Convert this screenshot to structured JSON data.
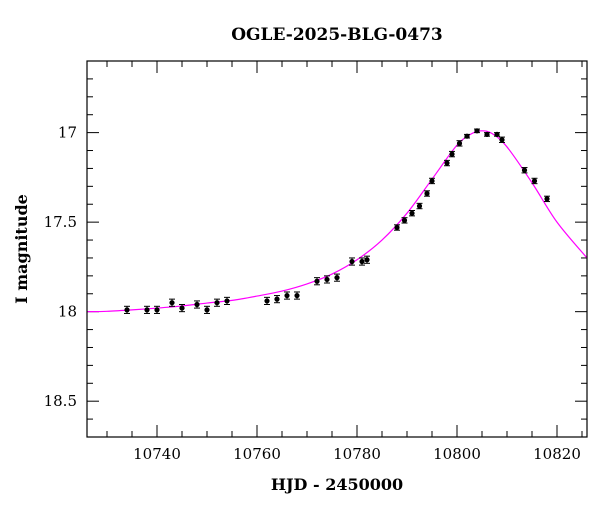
{
  "chart_data": {
    "type": "scatter",
    "title": "OGLE-2025-BLG-0473",
    "xlabel": "HJD - 2450000",
    "ylabel": "I magnitude",
    "xlim": [
      10726,
      10826
    ],
    "ylim": [
      18.7,
      16.6
    ],
    "y_inverted": true,
    "x_ticks": [
      10740,
      10760,
      10780,
      10800,
      10820
    ],
    "x_tick_labels": [
      "10740",
      "10760",
      "10780",
      "10800",
      "10820"
    ],
    "y_ticks": [
      17,
      17.5,
      18,
      18.5
    ],
    "y_tick_labels": [
      "17",
      "17.5",
      "18",
      "18.5"
    ],
    "grid": false,
    "colors": {
      "points": "#000000",
      "model": "#ff00ff",
      "frame": "#000000"
    },
    "series": [
      {
        "kind": "points",
        "x": [
          10734,
          10738,
          10740,
          10743,
          10745,
          10748,
          10750,
          10752,
          10754,
          10762,
          10764,
          10766,
          10768,
          10772,
          10774,
          10776,
          10779,
          10781,
          10782,
          10788,
          10789.5,
          10791,
          10792.5,
          10794,
          10795,
          10798,
          10799,
          10800.5,
          10802,
          10804,
          10806,
          10808,
          10809,
          10813.5,
          10815.5,
          10818
        ],
        "y": [
          17.99,
          17.99,
          17.99,
          17.95,
          17.98,
          17.96,
          17.99,
          17.95,
          17.94,
          17.94,
          17.93,
          17.91,
          17.91,
          17.83,
          17.82,
          17.81,
          17.72,
          17.72,
          17.71,
          17.53,
          17.49,
          17.45,
          17.41,
          17.34,
          17.27,
          17.17,
          17.12,
          17.06,
          17.02,
          16.99,
          17.01,
          17.01,
          17.04,
          17.21,
          17.27,
          17.37
        ],
        "yerr": [
          0.02,
          0.02,
          0.02,
          0.02,
          0.02,
          0.02,
          0.02,
          0.02,
          0.02,
          0.02,
          0.02,
          0.02,
          0.02,
          0.02,
          0.02,
          0.02,
          0.02,
          0.02,
          0.02,
          0.015,
          0.015,
          0.015,
          0.015,
          0.015,
          0.015,
          0.015,
          0.015,
          0.015,
          0.01,
          0.01,
          0.01,
          0.01,
          0.015,
          0.015,
          0.015,
          0.015
        ]
      },
      {
        "kind": "model",
        "x": [
          10726,
          10730,
          10735,
          10740,
          10745,
          10750,
          10755,
          10760,
          10765,
          10770,
          10775,
          10780,
          10785,
          10790,
          10795,
          10800,
          10803,
          10805,
          10807,
          10810,
          10815,
          10820,
          10826
        ],
        "y": [
          18.0,
          17.998,
          17.99,
          17.98,
          17.968,
          17.952,
          17.937,
          17.913,
          17.885,
          17.845,
          17.79,
          17.71,
          17.6,
          17.45,
          17.26,
          17.07,
          17.005,
          16.99,
          17.005,
          17.08,
          17.28,
          17.5,
          17.7
        ]
      }
    ]
  }
}
